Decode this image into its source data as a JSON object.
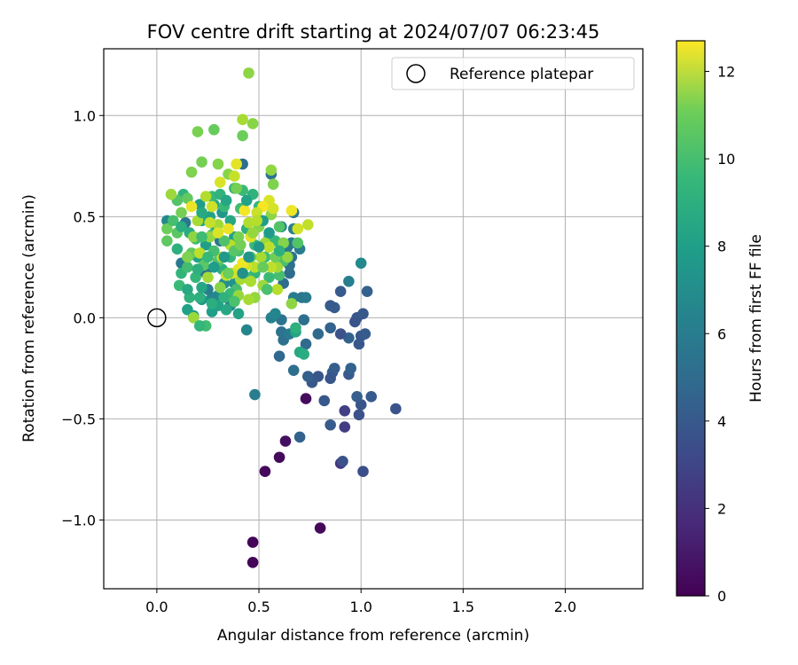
{
  "chart_data": {
    "type": "scatter",
    "title": "FOV centre drift starting at 2024/07/07 06:23:45",
    "xlabel": "Angular distance from reference (arcmin)",
    "ylabel": "Rotation from reference (arcmin)",
    "xlim": [
      -0.26,
      2.38
    ],
    "ylim": [
      -1.34,
      1.33
    ],
    "xticks": [
      0.0,
      0.5,
      1.0,
      1.5,
      2.0
    ],
    "xtick_labels": [
      "0.0",
      "0.5",
      "1.0",
      "1.5",
      "2.0"
    ],
    "yticks": [
      1.0,
      0.5,
      0.0,
      -0.5,
      -1.0
    ],
    "ytick_labels": [
      "1.0",
      "0.5",
      "0.0",
      "−0.5",
      "−1.0"
    ],
    "grid": true,
    "legend": {
      "placement": "top-right",
      "entries": [
        "Reference platepar"
      ]
    },
    "reference_point": {
      "label": "Reference platepar",
      "x": 0.0,
      "y": 0.0
    },
    "colorbar": {
      "label": "Hours from first FF file",
      "colormap": "viridis",
      "range": [
        0,
        12.7
      ],
      "ticks": [
        0,
        2,
        4,
        6,
        8,
        10,
        12
      ],
      "tick_labels": [
        "0",
        "2",
        "4",
        "6",
        "8",
        "10",
        "12"
      ]
    },
    "points": [
      [
        0.47,
        -1.21,
        0.1
      ],
      [
        0.47,
        -1.11,
        0.1
      ],
      [
        0.8,
        -1.04,
        0.3
      ],
      [
        0.53,
        -0.76,
        0.3
      ],
      [
        0.6,
        -0.69,
        0.3
      ],
      [
        0.63,
        -0.61,
        0.5
      ],
      [
        0.73,
        -0.4,
        0.4
      ],
      [
        0.9,
        -0.72,
        2.0
      ],
      [
        0.91,
        -0.71,
        3.2
      ],
      [
        0.92,
        -0.54,
        2.3
      ],
      [
        0.92,
        -0.46,
        2.4
      ],
      [
        1.01,
        -0.76,
        3.0
      ],
      [
        0.7,
        -0.59,
        4.0
      ],
      [
        0.85,
        -0.53,
        3.6
      ],
      [
        0.82,
        -0.41,
        3.5
      ],
      [
        0.99,
        -0.48,
        3.2
      ],
      [
        1.0,
        -0.43,
        3.4
      ],
      [
        1.05,
        -0.39,
        3.6
      ],
      [
        0.98,
        -0.39,
        3.8
      ],
      [
        1.17,
        -0.45,
        3.3
      ],
      [
        0.86,
        -0.27,
        3.6
      ],
      [
        0.87,
        -0.25,
        3.7
      ],
      [
        0.79,
        -0.29,
        3.4
      ],
      [
        0.76,
        -0.32,
        3.5
      ],
      [
        0.74,
        -0.29,
        3.8
      ],
      [
        0.94,
        -0.28,
        3.6
      ],
      [
        0.95,
        -0.25,
        3.9
      ],
      [
        0.85,
        -0.3,
        3.4
      ],
      [
        0.67,
        -0.26,
        4.6
      ],
      [
        0.6,
        -0.19,
        4.3
      ],
      [
        0.48,
        -0.38,
        5.4
      ],
      [
        0.94,
        -0.1,
        4.0
      ],
      [
        1.0,
        -0.09,
        3.5
      ],
      [
        1.02,
        -0.08,
        3.6
      ],
      [
        0.99,
        -0.13,
        3.5
      ],
      [
        0.98,
        -0.0,
        3.4
      ],
      [
        1.01,
        0.02,
        3.5
      ],
      [
        0.97,
        -0.02,
        3.3
      ],
      [
        0.9,
        -0.08,
        3.2
      ],
      [
        0.9,
        0.13,
        3.6
      ],
      [
        0.87,
        0.05,
        3.7
      ],
      [
        0.85,
        0.06,
        3.6
      ],
      [
        0.85,
        -0.05,
        4.0
      ],
      [
        0.73,
        -0.13,
        4.4
      ],
      [
        0.79,
        -0.08,
        4.4
      ],
      [
        0.72,
        -0.01,
        4.6
      ],
      [
        0.62,
        -0.11,
        4.7
      ],
      [
        0.61,
        -0.07,
        4.8
      ],
      [
        0.61,
        -0.01,
        4.9
      ],
      [
        0.65,
        -0.08,
        5.2
      ],
      [
        0.71,
        0.1,
        5.0
      ],
      [
        0.73,
        0.1,
        5.2
      ],
      [
        0.67,
        0.1,
        5.3
      ],
      [
        0.94,
        0.18,
        5.5
      ],
      [
        1.0,
        0.27,
        6.0
      ],
      [
        1.03,
        0.13,
        3.9
      ],
      [
        0.7,
        -0.17,
        7.6
      ],
      [
        0.72,
        -0.18,
        7.8
      ],
      [
        0.68,
        -0.07,
        7.4
      ],
      [
        0.68,
        -0.05,
        8.0
      ],
      [
        0.56,
        -0.0,
        5.6
      ],
      [
        0.58,
        0.02,
        5.8
      ],
      [
        0.62,
        0.17,
        4.5
      ],
      [
        0.65,
        0.22,
        4.5
      ],
      [
        0.65,
        0.26,
        4.7
      ],
      [
        0.66,
        0.3,
        4.9
      ],
      [
        0.64,
        0.35,
        5.1
      ],
      [
        0.66,
        0.37,
        5.2
      ],
      [
        0.7,
        0.34,
        5.3
      ],
      [
        0.67,
        0.44,
        5.5
      ],
      [
        0.67,
        0.52,
        5.0
      ],
      [
        0.61,
        0.45,
        5.8
      ],
      [
        0.56,
        0.71,
        4.8
      ],
      [
        0.42,
        0.76,
        4.6
      ],
      [
        0.44,
        -0.06,
        5.8
      ],
      [
        0.31,
        0.38,
        5.0
      ],
      [
        0.24,
        0.22,
        4.5
      ],
      [
        0.14,
        0.47,
        5.0
      ],
      [
        0.12,
        0.27,
        5.2
      ],
      [
        0.05,
        0.48,
        6.0
      ],
      [
        0.3,
        0.11,
        6.2
      ],
      [
        0.27,
        0.1,
        5.9
      ],
      [
        0.25,
        0.14,
        5.5
      ],
      [
        0.33,
        0.17,
        6.3
      ],
      [
        0.36,
        0.06,
        6.0
      ],
      [
        0.38,
        0.17,
        6.5
      ],
      [
        0.22,
        0.09,
        6.8
      ],
      [
        0.18,
        0.01,
        7.0
      ],
      [
        0.15,
        0.04,
        7.2
      ],
      [
        0.27,
        0.03,
        7.1
      ],
      [
        0.3,
        0.06,
        7.3
      ],
      [
        0.34,
        0.04,
        7.6
      ],
      [
        0.4,
        0.02,
        7.3
      ],
      [
        0.2,
        0.3,
        7.2
      ],
      [
        0.24,
        0.36,
        7.1
      ],
      [
        0.22,
        0.48,
        7.4
      ],
      [
        0.26,
        0.5,
        7.3
      ],
      [
        0.21,
        0.56,
        7.0
      ],
      [
        0.29,
        0.44,
        6.9
      ],
      [
        0.32,
        0.52,
        6.8
      ],
      [
        0.28,
        0.56,
        7.5
      ],
      [
        0.36,
        0.48,
        7.6
      ],
      [
        0.38,
        0.4,
        7.2
      ],
      [
        0.16,
        0.42,
        7.8
      ],
      [
        0.1,
        0.34,
        8.0
      ],
      [
        0.12,
        0.22,
        8.3
      ],
      [
        0.11,
        0.16,
        8.6
      ],
      [
        0.16,
        0.1,
        8.2
      ],
      [
        0.15,
        0.25,
        8.8
      ],
      [
        0.19,
        0.2,
        8.4
      ],
      [
        0.21,
        0.1,
        8.0
      ],
      [
        0.13,
        0.61,
        8.2
      ],
      [
        0.27,
        0.6,
        8.5
      ],
      [
        0.31,
        0.61,
        8.2
      ],
      [
        0.33,
        0.55,
        8.6
      ],
      [
        0.38,
        0.64,
        8.3
      ],
      [
        0.42,
        0.63,
        8.6
      ],
      [
        0.47,
        0.61,
        8.2
      ],
      [
        0.5,
        0.55,
        8.4
      ],
      [
        0.41,
        0.54,
        8.8
      ],
      [
        0.44,
        0.44,
        8.1
      ],
      [
        0.48,
        0.36,
        8.5
      ],
      [
        0.53,
        0.3,
        8.8
      ],
      [
        0.55,
        0.4,
        8.3
      ],
      [
        0.58,
        0.38,
        8.5
      ],
      [
        0.6,
        0.45,
        9.2
      ],
      [
        0.62,
        0.28,
        9.0
      ],
      [
        0.6,
        0.21,
        8.9
      ],
      [
        0.55,
        0.2,
        8.6
      ],
      [
        0.48,
        0.22,
        8.3
      ],
      [
        0.44,
        0.2,
        8.7
      ],
      [
        0.39,
        0.14,
        8.9
      ],
      [
        0.36,
        0.12,
        8.5
      ],
      [
        0.32,
        0.24,
        8.1
      ],
      [
        0.36,
        0.3,
        8.4
      ],
      [
        0.4,
        0.33,
        8.9
      ],
      [
        0.19,
        0.39,
        8.6
      ],
      [
        0.27,
        0.41,
        9.0
      ],
      [
        0.3,
        0.28,
        9.2
      ],
      [
        0.23,
        0.26,
        9.4
      ],
      [
        0.17,
        0.32,
        9.6
      ],
      [
        0.05,
        0.44,
        9.8
      ],
      [
        0.05,
        0.38,
        9.5
      ],
      [
        0.1,
        0.58,
        9.2
      ],
      [
        0.12,
        0.52,
        10.0
      ],
      [
        0.15,
        0.59,
        9.6
      ],
      [
        0.17,
        0.72,
        10.2
      ],
      [
        0.22,
        0.77,
        10.0
      ],
      [
        0.2,
        0.92,
        10.1
      ],
      [
        0.28,
        0.93,
        9.7
      ],
      [
        0.3,
        0.76,
        10.3
      ],
      [
        0.35,
        0.71,
        10.4
      ],
      [
        0.39,
        0.64,
        10.0
      ],
      [
        0.47,
        0.96,
        10.4
      ],
      [
        0.42,
        0.9,
        9.8
      ],
      [
        0.42,
        0.98,
        11.0
      ],
      [
        0.45,
        1.21,
        10.5
      ],
      [
        0.56,
        0.73,
        10.6
      ],
      [
        0.57,
        0.66,
        10.2
      ],
      [
        0.56,
        0.51,
        10.5
      ],
      [
        0.53,
        0.37,
        10.8
      ],
      [
        0.62,
        0.37,
        10.3
      ],
      [
        0.64,
        0.3,
        10.6
      ],
      [
        0.59,
        0.25,
        10.9
      ],
      [
        0.66,
        0.07,
        10.5
      ],
      [
        0.69,
        0.37,
        9.2
      ],
      [
        0.74,
        0.46,
        11.5
      ],
      [
        0.69,
        0.44,
        11.8
      ],
      [
        0.66,
        0.53,
        12.4
      ],
      [
        0.55,
        0.58,
        12.0
      ],
      [
        0.52,
        0.55,
        12.6
      ],
      [
        0.49,
        0.52,
        11.7
      ],
      [
        0.45,
        0.47,
        11.2
      ],
      [
        0.48,
        0.25,
        11.4
      ],
      [
        0.44,
        0.26,
        11.9
      ],
      [
        0.4,
        0.24,
        12.2
      ],
      [
        0.41,
        0.19,
        11.0
      ],
      [
        0.4,
        0.11,
        10.7
      ],
      [
        0.34,
        0.21,
        11.6
      ],
      [
        0.36,
        0.36,
        11.3
      ],
      [
        0.32,
        0.3,
        11.7
      ],
      [
        0.3,
        0.46,
        10.9
      ],
      [
        0.27,
        0.55,
        11.8
      ],
      [
        0.24,
        0.6,
        11.2
      ],
      [
        0.31,
        0.67,
        12.0
      ],
      [
        0.38,
        0.7,
        11.6
      ],
      [
        0.39,
        0.76,
        12.2
      ],
      [
        0.43,
        0.53,
        12.5
      ],
      [
        0.46,
        0.4,
        12.1
      ],
      [
        0.51,
        0.3,
        11.0
      ],
      [
        0.56,
        0.25,
        11.5
      ],
      [
        0.59,
        0.14,
        11.3
      ],
      [
        0.52,
        0.16,
        10.8
      ],
      [
        0.48,
        0.1,
        10.6
      ],
      [
        0.46,
        0.18,
        11.1
      ],
      [
        0.42,
        0.27,
        12.4
      ],
      [
        0.37,
        0.22,
        11.9
      ],
      [
        0.31,
        0.15,
        10.4
      ],
      [
        0.25,
        0.2,
        10.9
      ],
      [
        0.21,
        0.32,
        11.4
      ],
      [
        0.15,
        0.3,
        10.2
      ],
      [
        0.18,
        0.4,
        10.5
      ],
      [
        0.2,
        0.48,
        11.0
      ],
      [
        0.26,
        0.4,
        10.6
      ],
      [
        0.35,
        0.44,
        12.3
      ],
      [
        0.4,
        0.4,
        10.1
      ],
      [
        0.5,
        0.45,
        10.3
      ],
      [
        0.55,
        0.35,
        11.4
      ],
      [
        0.58,
        0.3,
        9.9
      ],
      [
        0.52,
        0.25,
        9.7
      ],
      [
        0.46,
        0.3,
        9.5
      ],
      [
        0.38,
        0.33,
        9.3
      ],
      [
        0.33,
        0.38,
        9.1
      ],
      [
        0.28,
        0.33,
        8.9
      ],
      [
        0.22,
        0.4,
        8.7
      ],
      [
        0.1,
        0.42,
        9.4
      ],
      [
        0.08,
        0.48,
        8.9
      ],
      [
        0.12,
        0.45,
        7.9
      ],
      [
        0.22,
        0.52,
        7.7
      ],
      [
        0.34,
        0.58,
        7.5
      ],
      [
        0.44,
        0.58,
        7.3
      ],
      [
        0.52,
        0.48,
        7.1
      ],
      [
        0.55,
        0.42,
        6.9
      ],
      [
        0.5,
        0.35,
        6.7
      ],
      [
        0.45,
        0.3,
        6.6
      ],
      [
        0.42,
        0.22,
        6.4
      ],
      [
        0.33,
        0.3,
        6.8
      ],
      [
        0.28,
        0.25,
        7.0
      ],
      [
        0.25,
        0.3,
        8.5
      ],
      [
        0.2,
        0.24,
        8.0
      ],
      [
        0.15,
        0.14,
        7.7
      ],
      [
        0.22,
        0.15,
        7.5
      ],
      [
        0.27,
        0.07,
        7.9
      ],
      [
        0.33,
        0.1,
        8.2
      ],
      [
        0.38,
        0.08,
        9.0
      ],
      [
        0.35,
        0.22,
        9.8
      ],
      [
        0.41,
        0.36,
        10.0
      ],
      [
        0.47,
        0.42,
        10.7
      ],
      [
        0.49,
        0.48,
        11.3
      ],
      [
        0.57,
        0.54,
        11.9
      ],
      [
        0.3,
        0.42,
        12.0
      ],
      [
        0.26,
        0.47,
        11.6
      ],
      [
        0.17,
        0.55,
        12.3
      ],
      [
        0.07,
        0.61,
        10.8
      ],
      [
        0.18,
        0.0,
        10.8
      ],
      [
        0.24,
        -0.04,
        8.8
      ],
      [
        0.21,
        -0.04,
        8.4
      ],
      [
        0.45,
        0.09,
        11.0
      ],
      [
        0.54,
        0.14,
        9.0
      ],
      [
        0.6,
        0.33,
        8.0
      ]
    ]
  }
}
